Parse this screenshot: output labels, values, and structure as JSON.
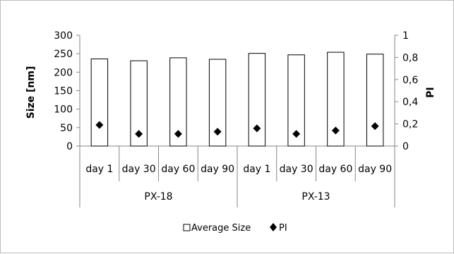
{
  "chart_data": {
    "type": "bar",
    "categories": [
      "day 1",
      "day 30",
      "day 60",
      "day 90",
      "day 1",
      "day 30",
      "day 60",
      "day 90"
    ],
    "groups": [
      {
        "label": "PX-18",
        "count": 4
      },
      {
        "label": "PX-13",
        "count": 4
      }
    ],
    "series": [
      {
        "name": "Average Size",
        "type": "bar",
        "axis": "left",
        "values": [
          236,
          231,
          239,
          235,
          251,
          247,
          254,
          249
        ]
      },
      {
        "name": "PI",
        "type": "scatter",
        "axis": "right",
        "values": [
          0.19,
          0.11,
          0.11,
          0.13,
          0.16,
          0.11,
          0.14,
          0.18
        ]
      }
    ],
    "ylabel": "Size [nm]",
    "y2label": "PI",
    "ylim": [
      0,
      300
    ],
    "yticks": [
      0,
      50,
      100,
      150,
      200,
      250,
      300
    ],
    "y2lim": [
      0,
      1
    ],
    "y2ticks": [
      "0",
      "0,2",
      "0,4",
      "0,6",
      "0,8",
      "1"
    ],
    "grid": false,
    "legend_position": "bottom",
    "colors": {
      "bar_fill": "#ffffff",
      "bar_stroke": "#000000",
      "marker": "#000000",
      "axis": "#868686"
    }
  }
}
